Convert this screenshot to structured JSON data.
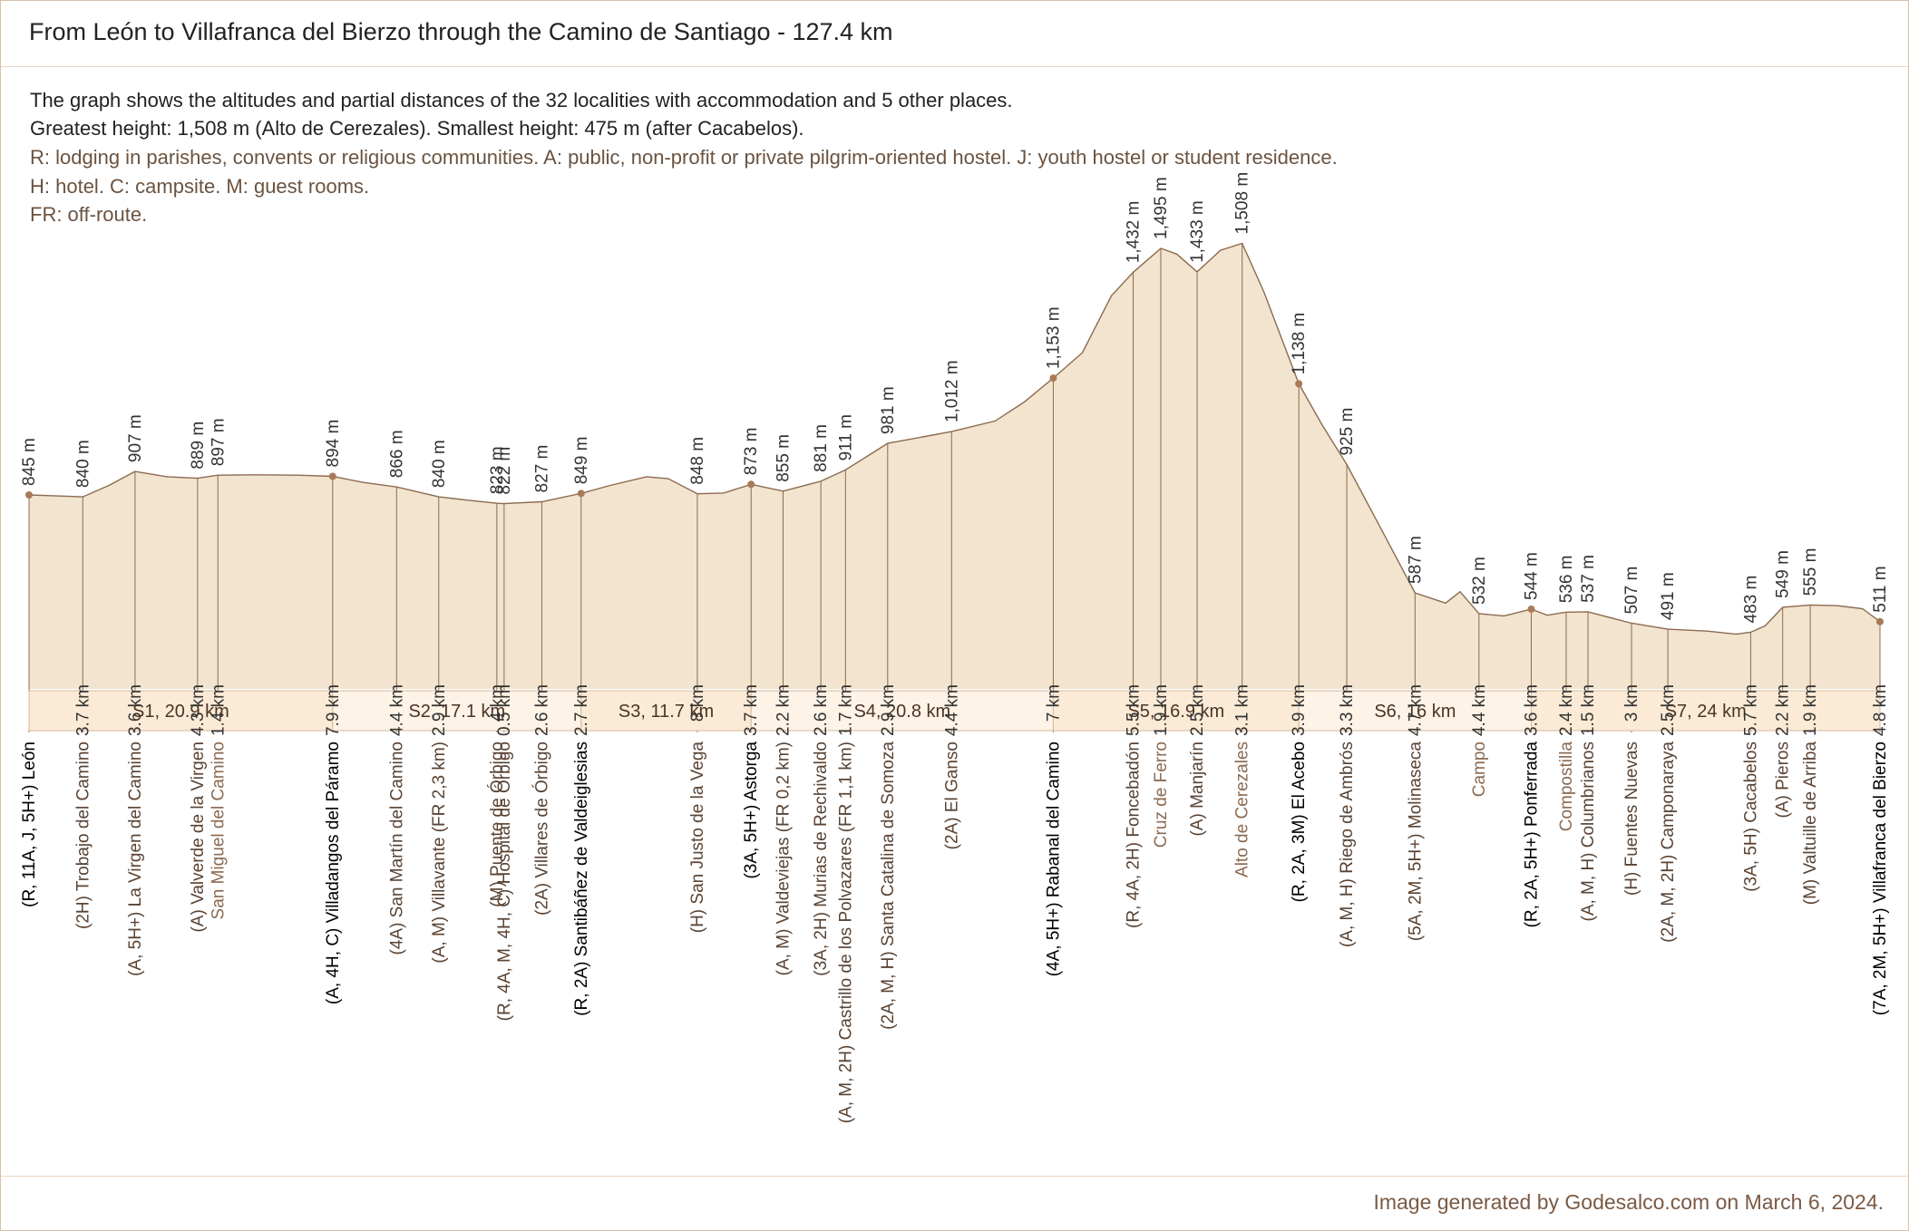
{
  "title": "From León to Villafranca del Bierzo through the Camino de Santiago - 127.4 km",
  "description": [
    "The graph shows the altitudes and partial distances of the 32 localities with accommodation and 5 other places.",
    "Greatest height: 1,508 m (Alto de Cerezales).  Smallest height: 475 m (after Cacabelos).",
    "R: lodging in parishes, convents or religious communities. A: public, non-profit or private pilgrim-oriented hostel. J: youth hostel or student residence.",
    "H: hotel. C: campsite. M: guest rooms.",
    "FR: off-route."
  ],
  "footer": "Image generated by Godesalco.com on March 6, 2024.",
  "colors": {
    "fill": "#f2e4ce",
    "stroke": "#8c6a50",
    "stage_fill": "#fbebd6",
    "stage_fill_alt": "#fdf3e6",
    "dot": "#a87a5a",
    "main_label": "#000000",
    "sub_label": "#5a4333",
    "other_label": "#8a6a52"
  },
  "chart_data": {
    "type": "area",
    "title": "From León to Villafranca del Bierzo through the Camino de Santiago - 127.4 km",
    "xlabel": "",
    "ylabel": "",
    "units": {
      "x": "km",
      "y": "m"
    },
    "xlim": [
      0,
      127.4
    ],
    "places": [
      {
        "name": "(R, 11A, J, 5H+) León",
        "km": 0,
        "alt": 845,
        "alt_label": "845 m",
        "seg_label": "",
        "kind": "main"
      },
      {
        "name": "(2H) Trobajo del Camino",
        "km": 3.7,
        "alt": 840,
        "alt_label": "840 m",
        "seg_label": "3.7 km",
        "kind": "sub"
      },
      {
        "name": "(A, 5H+) La Virgen del Camino",
        "km": 7.3,
        "alt": 907,
        "alt_label": "907 m",
        "seg_label": "3.6 km",
        "kind": "sub"
      },
      {
        "name": "(A) Valverde de la Virgen",
        "km": 11.6,
        "alt": 889,
        "alt_label": "889 m",
        "seg_label": "4.3 km",
        "kind": "sub"
      },
      {
        "name": "San Miguel del Camino",
        "km": 13.0,
        "alt": 897,
        "alt_label": "897 m",
        "seg_label": "1.4 km",
        "kind": "other"
      },
      {
        "name": "(A, 4H, C) Villadangos del Páramo",
        "km": 20.9,
        "alt": 894,
        "alt_label": "894 m",
        "seg_label": "7.9 km",
        "kind": "main"
      },
      {
        "name": "(4A) San Martín del Camino",
        "km": 25.3,
        "alt": 866,
        "alt_label": "866 m",
        "seg_label": "4.4 km",
        "kind": "sub"
      },
      {
        "name": "(A, M) Villavante (FR 2,3 km)",
        "km": 28.2,
        "alt": 840,
        "alt_label": "840 m",
        "seg_label": "2.9 km",
        "kind": "sub"
      },
      {
        "name": "(M) Puente de Órbigo",
        "km": 32.2,
        "alt": 823,
        "alt_label": "823 m",
        "seg_label": "4 km",
        "kind": "sub"
      },
      {
        "name": "(R, 4A, M, 4H, C) Hospital de Órbigo",
        "km": 32.7,
        "alt": 822,
        "alt_label": "822 m",
        "seg_label": "0.5 km",
        "kind": "sub"
      },
      {
        "name": "(2A) Villares de Órbigo",
        "km": 35.3,
        "alt": 827,
        "alt_label": "827 m",
        "seg_label": "2.6 km",
        "kind": "sub"
      },
      {
        "name": "(R, 2A) Santibáñez de Valdeiglesias",
        "km": 38.0,
        "alt": 849,
        "alt_label": "849 m",
        "seg_label": "2.7 km",
        "kind": "main"
      },
      {
        "name": "(H) San Justo de la Vega",
        "km": 46.0,
        "alt": 848,
        "alt_label": "848 m",
        "seg_label": "8 km",
        "kind": "sub"
      },
      {
        "name": "(3A, 5H+) Astorga",
        "km": 49.7,
        "alt": 873,
        "alt_label": "873 m",
        "seg_label": "3.7 km",
        "kind": "main"
      },
      {
        "name": "(A, M) Valdeviejas (FR 0,2 km)",
        "km": 51.9,
        "alt": 855,
        "alt_label": "855 m",
        "seg_label": "2.2 km",
        "kind": "sub"
      },
      {
        "name": "(3A, 2H) Murias de Rechivaldo",
        "km": 54.5,
        "alt": 881,
        "alt_label": "881 m",
        "seg_label": "2.6 km",
        "kind": "sub"
      },
      {
        "name": "(A, M, 2H) Castrillo de los Polvazares (FR 1,1 km)",
        "km": 56.2,
        "alt": 911,
        "alt_label": "911 m",
        "seg_label": "1.7 km",
        "kind": "sub"
      },
      {
        "name": "(2A, M, H) Santa Catalina de Somoza",
        "km": 59.1,
        "alt": 981,
        "alt_label": "981 m",
        "seg_label": "2.9 km",
        "kind": "sub"
      },
      {
        "name": "(2A) El Ganso",
        "km": 63.5,
        "alt": 1012,
        "alt_label": "1,012 m",
        "seg_label": "4.4 km",
        "kind": "sub"
      },
      {
        "name": "(4A, 5H+) Rabanal del Camino",
        "km": 70.5,
        "alt": 1153,
        "alt_label": "1,153 m",
        "seg_label": "7 km",
        "kind": "main"
      },
      {
        "name": "(R, 4A, 2H) Foncebadón",
        "km": 76.0,
        "alt": 1432,
        "alt_label": "1,432 m",
        "seg_label": "5.5 km",
        "kind": "sub"
      },
      {
        "name": "Cruz de Ferro",
        "km": 77.9,
        "alt": 1495,
        "alt_label": "1,495 m",
        "seg_label": "1.9 km",
        "kind": "other"
      },
      {
        "name": "(A) Manjarín",
        "km": 80.4,
        "alt": 1433,
        "alt_label": "1,433 m",
        "seg_label": "2.5 km",
        "kind": "sub"
      },
      {
        "name": "Alto de Cerezales",
        "km": 83.5,
        "alt": 1508,
        "alt_label": "1,508 m",
        "seg_label": "3.1 km",
        "kind": "other"
      },
      {
        "name": "(R, 2A, 3M) El Acebo",
        "km": 87.4,
        "alt": 1138,
        "alt_label": "1,138 m",
        "seg_label": "3.9 km",
        "kind": "main"
      },
      {
        "name": "(A, M, H) Riego de Ambrós",
        "km": 90.7,
        "alt": 925,
        "alt_label": "925 m",
        "seg_label": "3.3 km",
        "kind": "sub"
      },
      {
        "name": "(5A, 2M, 5H+) Molinaseca",
        "km": 95.4,
        "alt": 587,
        "alt_label": "587 m",
        "seg_label": "4.7 km",
        "kind": "sub"
      },
      {
        "name": "Campo",
        "km": 99.8,
        "alt": 532,
        "alt_label": "532 m",
        "seg_label": "4.4 km",
        "kind": "other"
      },
      {
        "name": "(R, 2A, 5H+) Ponferrada",
        "km": 103.4,
        "alt": 544,
        "alt_label": "544 m",
        "seg_label": "3.6 km",
        "kind": "main"
      },
      {
        "name": "Compostilla",
        "km": 105.8,
        "alt": 536,
        "alt_label": "536 m",
        "seg_label": "2.4 km",
        "kind": "other"
      },
      {
        "name": "(A, M, H) Columbrianos",
        "km": 107.3,
        "alt": 537,
        "alt_label": "537 m",
        "seg_label": "1.5 km",
        "kind": "sub"
      },
      {
        "name": "(H) Fuentes Nuevas",
        "km": 110.3,
        "alt": 507,
        "alt_label": "507 m",
        "seg_label": "3 km",
        "kind": "sub"
      },
      {
        "name": "(2A, M, 2H) Camponaraya",
        "km": 112.8,
        "alt": 491,
        "alt_label": "491 m",
        "seg_label": "2.5 km",
        "kind": "sub"
      },
      {
        "name": "(3A, 5H) Cacabelos",
        "km": 118.5,
        "alt": 483,
        "alt_label": "483 m",
        "seg_label": "5.7 km",
        "kind": "sub"
      },
      {
        "name": "(A) Pieros",
        "km": 120.7,
        "alt": 549,
        "alt_label": "549 m",
        "seg_label": "2.2 km",
        "kind": "sub"
      },
      {
        "name": "(M) Valtuille de Arriba",
        "km": 122.6,
        "alt": 555,
        "alt_label": "555 m",
        "seg_label": "1.9 km",
        "kind": "sub"
      },
      {
        "name": "(7A, 2M, 5H+) Villafranca del Bierzo",
        "km": 127.4,
        "alt": 511,
        "alt_label": "511 m",
        "seg_label": "4.8 km",
        "kind": "main"
      }
    ],
    "stages": [
      {
        "label": "S1, 20.9 km",
        "start_km": 0,
        "end_km": 20.9
      },
      {
        "label": "S2, 17.1 km",
        "start_km": 20.9,
        "end_km": 38.0
      },
      {
        "label": "S3, 11.7 km",
        "start_km": 38.0,
        "end_km": 49.7
      },
      {
        "label": "S4, 20.8 km",
        "start_km": 49.7,
        "end_km": 70.5
      },
      {
        "label": "S5, 16.9 km",
        "start_km": 70.5,
        "end_km": 87.4
      },
      {
        "label": "S6, 16 km",
        "start_km": 87.4,
        "end_km": 103.4
      },
      {
        "label": "S7, 24 km",
        "start_km": 103.4,
        "end_km": 127.4
      }
    ],
    "extra_profile": [
      {
        "km": 1.5,
        "alt": 843
      },
      {
        "km": 5.5,
        "alt": 870
      },
      {
        "km": 9.5,
        "alt": 893
      },
      {
        "km": 15.5,
        "alt": 898
      },
      {
        "km": 18.5,
        "alt": 897
      },
      {
        "km": 23.0,
        "alt": 878
      },
      {
        "km": 30.0,
        "alt": 832
      },
      {
        "km": 40.0,
        "alt": 870
      },
      {
        "km": 42.5,
        "alt": 893
      },
      {
        "km": 44.0,
        "alt": 888
      },
      {
        "km": 47.8,
        "alt": 850
      },
      {
        "km": 66.5,
        "alt": 1040
      },
      {
        "km": 68.5,
        "alt": 1090
      },
      {
        "km": 72.5,
        "alt": 1220
      },
      {
        "km": 74.5,
        "alt": 1370
      },
      {
        "km": 79.0,
        "alt": 1480
      },
      {
        "km": 82.0,
        "alt": 1490
      },
      {
        "km": 85.0,
        "alt": 1380
      },
      {
        "km": 89.0,
        "alt": 1030
      },
      {
        "km": 93.0,
        "alt": 760
      },
      {
        "km": 97.5,
        "alt": 560
      },
      {
        "km": 98.5,
        "alt": 590
      },
      {
        "km": 101.5,
        "alt": 526
      },
      {
        "km": 104.5,
        "alt": 528
      },
      {
        "km": 115.5,
        "alt": 486
      },
      {
        "km": 117.5,
        "alt": 478
      },
      {
        "km": 119.5,
        "alt": 500
      },
      {
        "km": 124.5,
        "alt": 553
      },
      {
        "km": 126.2,
        "alt": 545
      }
    ]
  }
}
